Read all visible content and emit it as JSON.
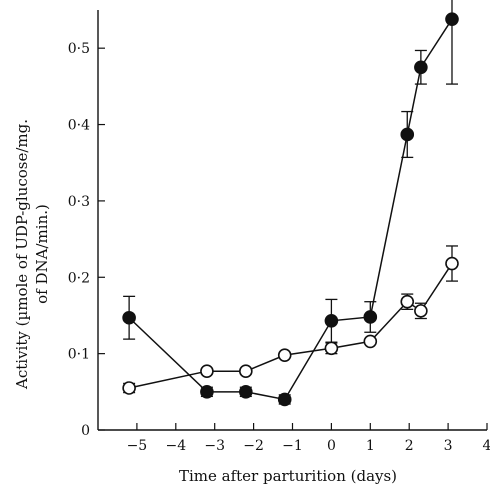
{
  "chart_data": {
    "type": "line",
    "xlabel": "Time after parturition (days)",
    "ylabel_line1": "Activity (µmole of UDP-glucose/mg.",
    "ylabel_line2": "of DNA/min.)",
    "xlim": [
      -6,
      4
    ],
    "ylim": [
      0,
      0.55
    ],
    "x_ticks": [
      {
        "v": -5,
        "label": "−5"
      },
      {
        "v": -4,
        "label": "−4"
      },
      {
        "v": -3,
        "label": "−3"
      },
      {
        "v": -2,
        "label": "−2"
      },
      {
        "v": -1,
        "label": "−1"
      },
      {
        "v": 0,
        "label": "0"
      },
      {
        "v": 1,
        "label": "1"
      },
      {
        "v": 2,
        "label": "2"
      },
      {
        "v": 3,
        "label": "3"
      },
      {
        "v": 4,
        "label": "4"
      }
    ],
    "y_ticks": [
      {
        "v": 0,
        "label": "0"
      },
      {
        "v": 0.1,
        "label": "0·1"
      },
      {
        "v": 0.2,
        "label": "0·2"
      },
      {
        "v": 0.3,
        "label": "0·3"
      },
      {
        "v": 0.4,
        "label": "0·4"
      },
      {
        "v": 0.5,
        "label": "0·5"
      }
    ],
    "grid": false,
    "series": [
      {
        "marker": "filled-circle",
        "color": "#111111",
        "points": [
          {
            "x": -5.2,
            "y": 0.147,
            "err": 0.028
          },
          {
            "x": -3.2,
            "y": 0.05,
            "err": 0.006
          },
          {
            "x": -2.2,
            "y": 0.05,
            "err": 0.006
          },
          {
            "x": -1.2,
            "y": 0.04,
            "err": 0.006
          },
          {
            "x": 0.0,
            "y": 0.143,
            "err": 0.028
          },
          {
            "x": 1.0,
            "y": 0.148,
            "err": 0.02
          },
          {
            "x": 1.95,
            "y": 0.387,
            "err": 0.03
          },
          {
            "x": 2.3,
            "y": 0.475,
            "err": 0.022
          },
          {
            "x": 3.1,
            "y": 0.538,
            "err": 0.085
          }
        ]
      },
      {
        "marker": "open-circle",
        "color": "#111111",
        "points": [
          {
            "x": -5.2,
            "y": 0.055,
            "err": 0.006
          },
          {
            "x": -3.2,
            "y": 0.077,
            "err": 0.0
          },
          {
            "x": -2.2,
            "y": 0.077,
            "err": 0.0
          },
          {
            "x": -1.2,
            "y": 0.098,
            "err": 0.0
          },
          {
            "x": 0.0,
            "y": 0.107,
            "err": 0.007
          },
          {
            "x": 1.0,
            "y": 0.116,
            "err": 0.0
          },
          {
            "x": 1.95,
            "y": 0.168,
            "err": 0.01
          },
          {
            "x": 2.3,
            "y": 0.156,
            "err": 0.01
          },
          {
            "x": 3.1,
            "y": 0.218,
            "err": 0.023
          }
        ]
      }
    ]
  }
}
